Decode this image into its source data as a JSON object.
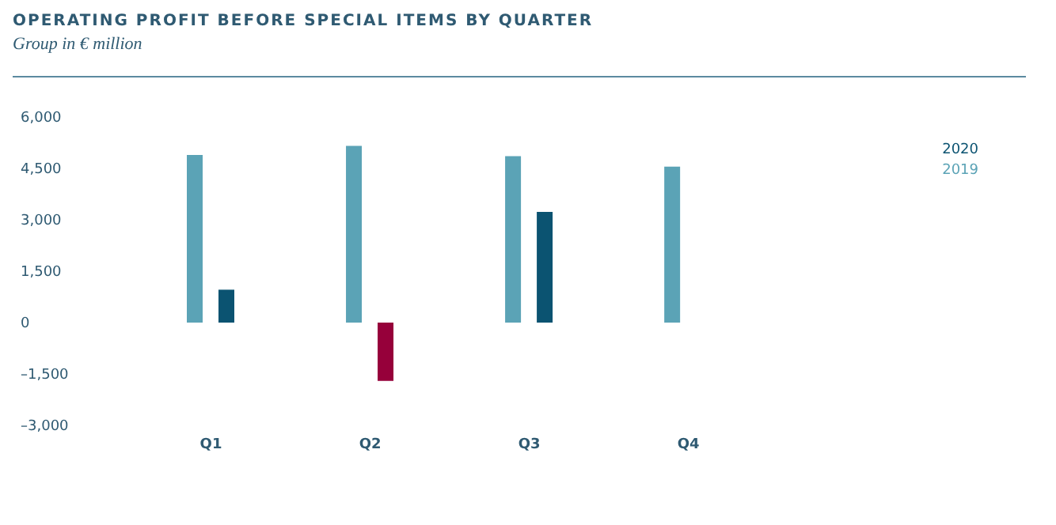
{
  "chart_data": {
    "type": "bar",
    "title": "OPERATING PROFIT BEFORE SPECIAL ITEMS BY QUARTER",
    "subtitle": "Group in € million",
    "categories": [
      "Q1",
      "Q2",
      "Q3",
      "Q4"
    ],
    "series": [
      {
        "name": "2019",
        "color": "#5ba3b6",
        "values": [
          4890,
          5160,
          4860,
          4550
        ]
      },
      {
        "name": "2020",
        "color": "#0b5371",
        "colors": [
          "#0b5371",
          "#96003a",
          "#0b5371",
          "#0b5371"
        ],
        "values": [
          960,
          -1700,
          3230,
          null
        ]
      }
    ],
    "ylim": [
      -3000,
      6000
    ],
    "yticks": [
      {
        "value": -3000,
        "label": "–3,000"
      },
      {
        "value": -1500,
        "label": "–1,500"
      },
      0,
      {
        "value": 1500,
        "label": "1,500"
      },
      {
        "value": 3000,
        "label": "3,000"
      },
      {
        "value": 4500,
        "label": "4,500"
      },
      {
        "value": 6000,
        "label": "6,000"
      }
    ],
    "grid": false,
    "legend": "top right"
  }
}
